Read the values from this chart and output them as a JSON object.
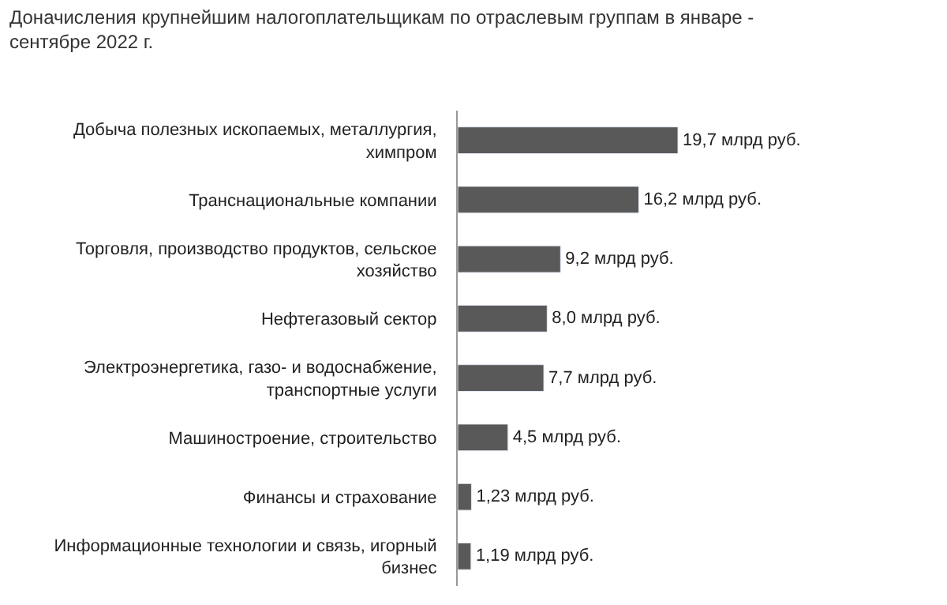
{
  "chart_data": {
    "type": "bar",
    "orientation": "horizontal",
    "title": "Доначисления крупнейшим налогоплательщикам по отраслевым группам в январе - сентябре 2022 г.",
    "categories": [
      "Добыча полезных ископаемых, металлургия, химпром",
      "Транснациональные компании",
      "Торговля, производство продуктов, сельское хозяйство",
      "Нефтегазовый сектор",
      "Электроэнергетика, газо- и водоснабжение, транспортные услуги",
      "Машиностроение, строительство",
      "Финансы и страхование",
      "Информационные технологии и связь, игорный бизнес"
    ],
    "values": [
      19.7,
      16.2,
      9.2,
      8.0,
      7.7,
      4.5,
      1.23,
      1.19
    ],
    "value_labels": [
      "19,7 млрд руб.",
      "16,2 млрд руб.",
      "9,2 млрд руб.",
      "8,0 млрд руб.",
      "7,7 млрд руб.",
      "4,5 млрд руб.",
      "1,23 млрд руб.",
      "1,19 млрд руб."
    ],
    "color": "#595959"
  }
}
